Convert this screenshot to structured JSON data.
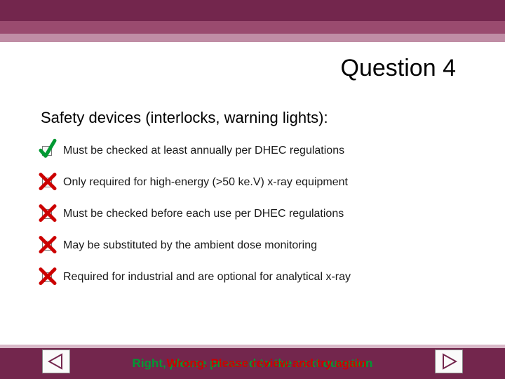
{
  "colors": {
    "band1": "#73264d",
    "band2": "#9a4b6f",
    "band3": "#c08da5",
    "footer_bg": "#73264d",
    "footer_line": "#d9b8c8",
    "check_green": "#009933",
    "x_red": "#cc0000",
    "feedback_green": "#009933",
    "feedback_red": "#cc0000",
    "feedback_blue": "#1a4ba8",
    "nav_tri": "#73264d"
  },
  "title": "Question 4",
  "question": "Safety devices (interlocks, warning lights):",
  "options": [
    {
      "label": "Must be checked at least annually per DHEC regulations",
      "mark": "check"
    },
    {
      "label": "Only required for high-energy (>50 ke.V) x-ray equipment",
      "mark": "x"
    },
    {
      "label": "Must be checked before each use per DHEC regulations",
      "mark": "x"
    },
    {
      "label": "May be substituted by the ambient dose monitoring",
      "mark": "x"
    },
    {
      "label": "Required for industrial and are optional for analytical x-ray",
      "mark": "x"
    }
  ],
  "feedback": {
    "layer1": "Right, please proceed to the next question",
    "layer2": "Wrong. Please review and try again"
  }
}
